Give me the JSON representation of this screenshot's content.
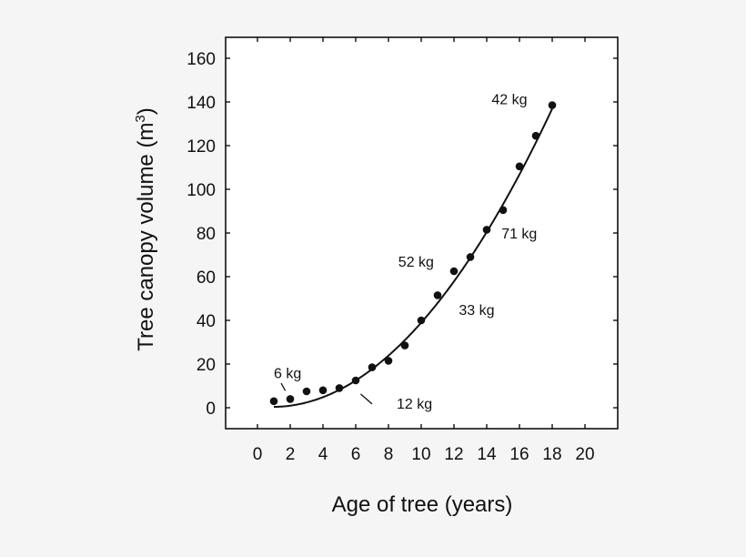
{
  "chart_data": {
    "type": "scatter",
    "title": "",
    "xlabel": "Age of tree (years)",
    "ylabel": "Tree canopy volume (m",
    "ylabel_superscript": "3",
    "ylabel_suffix": ")",
    "xlim": [
      -2,
      22
    ],
    "ylim": [
      -10,
      170
    ],
    "x_ticks": [
      0,
      2,
      4,
      6,
      8,
      10,
      12,
      14,
      16,
      18,
      20
    ],
    "y_ticks": [
      0,
      20,
      40,
      60,
      80,
      100,
      120,
      140,
      160
    ],
    "grid": false,
    "legend": null,
    "series": [
      {
        "name": "observed",
        "kind": "scatter",
        "x": [
          1,
          2,
          3,
          4,
          5,
          6,
          7,
          8,
          9,
          10,
          11,
          12,
          13,
          14,
          15,
          16,
          17,
          18
        ],
        "y": [
          3,
          4,
          7.5,
          8,
          9,
          12.5,
          18.5,
          21.5,
          28.5,
          40,
          51.5,
          62.5,
          69,
          81.5,
          90.5,
          110.5,
          124.5,
          138.5
        ]
      },
      {
        "name": "fitted curve",
        "kind": "line",
        "equation": "y = 0.468x^2 - 0.862x + 0.794",
        "coefficients": {
          "a": 0.468,
          "b": -0.862,
          "c": 0.794
        },
        "x_range": [
          1,
          18
        ]
      }
    ],
    "annotations": [
      {
        "text": "6 kg",
        "x": 1.0,
        "y": 13.5,
        "leader": [
          [
            1.45,
            11.2
          ],
          [
            1.7,
            7.8
          ]
        ]
      },
      {
        "text": "12 kg",
        "x": 8.5,
        "y": -0.5,
        "leader": [
          [
            6.3,
            6.3
          ],
          [
            7.0,
            1.7
          ]
        ]
      },
      {
        "text": "33 kg",
        "x": 12.3,
        "y": 42.5
      },
      {
        "text": "52 kg",
        "x": 8.6,
        "y": 64.5
      },
      {
        "text": "71 kg",
        "x": 14.9,
        "y": 77.5
      },
      {
        "text": "42 kg",
        "x": 14.3,
        "y": 139
      }
    ]
  }
}
